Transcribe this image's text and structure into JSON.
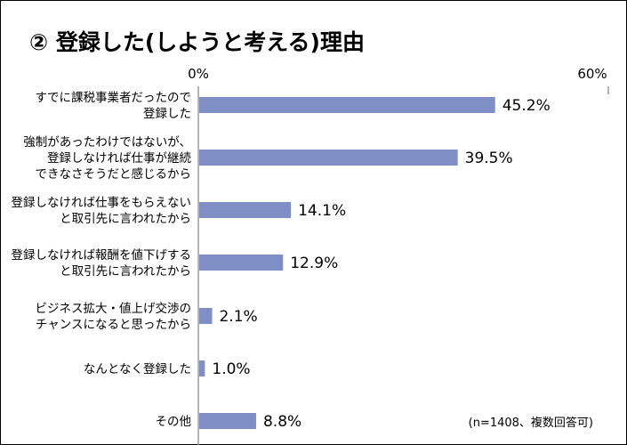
{
  "chart_data": {
    "type": "bar",
    "orientation": "horizontal",
    "title": "② 登録した(しようと考える)理由",
    "note": "(n=1408、複数回答可)",
    "xlim": [
      0,
      60
    ],
    "tick_labels": [
      "0%",
      "60%"
    ],
    "ticks": [
      0,
      60
    ],
    "bar_color": "#7f8fc6",
    "categories": [
      [
        "すでに課税事業者だったので",
        "登録した"
      ],
      [
        "強制があったわけではないが、",
        "登録しなければ仕事が継続",
        "できなさそうだと感じるから"
      ],
      [
        "登録しなければ仕事をもらえない",
        "と取引先に言われたから"
      ],
      [
        "登録しなければ報酬を値下げする",
        "と取引先に言われたから"
      ],
      [
        "ビジネス拡大・値上げ交渉の",
        "チャンスになると思ったから"
      ],
      [
        "なんとなく登録した"
      ],
      [
        "その他"
      ]
    ],
    "values": [
      45.2,
      39.5,
      14.1,
      12.9,
      2.1,
      1.0,
      8.8
    ],
    "value_labels": [
      "45.2%",
      "39.5%",
      "14.1%",
      "12.9%",
      "2.1%",
      "1.0%",
      "8.8%"
    ]
  }
}
